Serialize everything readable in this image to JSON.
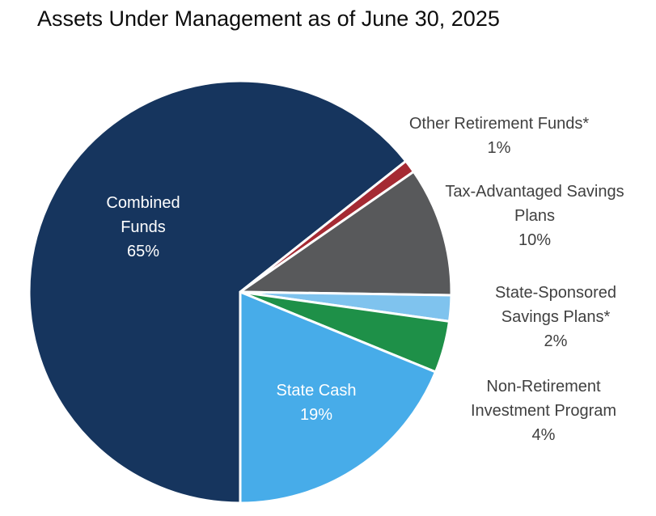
{
  "title": "Assets Under Management as of June 30, 2025",
  "chart_data": {
    "type": "pie",
    "title": "Assets Under Management as of June 30, 2025",
    "legend_position": "none",
    "labels_on_chart": true,
    "start_angle_deg_clockwise_from_top": 180,
    "slice_border_color": "#FFFFFF",
    "slices": [
      {
        "label": "Combined Funds",
        "value_pct": 65,
        "pct_text": "65%",
        "color": "#16355E",
        "label_placement": "inside",
        "label_lines": [
          "Combined",
          "Funds"
        ]
      },
      {
        "label": "Other Retirement Funds*",
        "value_pct": 1,
        "pct_text": "1%",
        "color": "#A52A33",
        "label_placement": "outside",
        "label_lines": [
          "Other Retirement Funds*"
        ]
      },
      {
        "label": "Tax-Advantaged Savings Plans",
        "value_pct": 10,
        "pct_text": "10%",
        "color": "#58595B",
        "label_placement": "outside",
        "label_lines": [
          "Tax-Advantaged Savings",
          "Plans"
        ]
      },
      {
        "label": "State-Sponsored Savings Plans*",
        "value_pct": 2,
        "pct_text": "2%",
        "color": "#7FC3EE",
        "label_placement": "outside",
        "label_lines": [
          "State-Sponsored",
          "Savings Plans*"
        ]
      },
      {
        "label": "Non-Retirement Investment Program",
        "value_pct": 4,
        "pct_text": "4%",
        "color": "#1E9048",
        "label_placement": "outside",
        "label_lines": [
          "Non-Retirement",
          "Investment Program"
        ]
      },
      {
        "label": "State Cash",
        "value_pct": 19,
        "pct_text": "19%",
        "color": "#47ACE9",
        "label_placement": "inside",
        "label_lines": [
          "State Cash"
        ]
      }
    ]
  }
}
